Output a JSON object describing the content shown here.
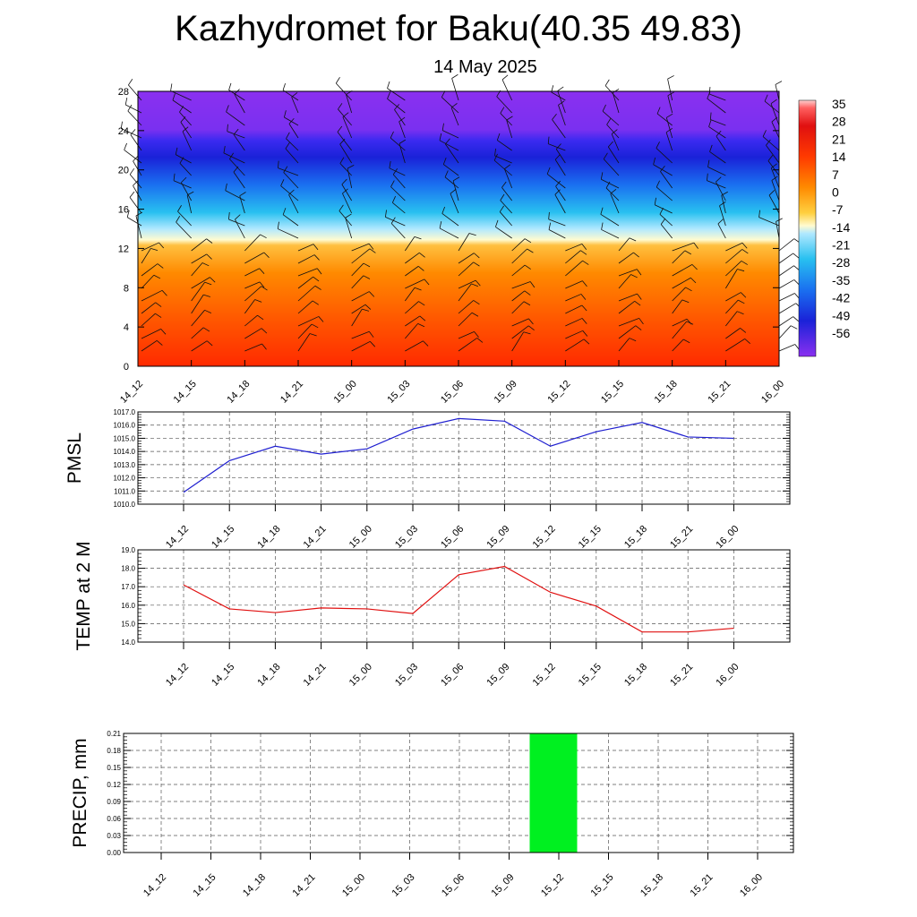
{
  "title": "Kazhydromet for Baku(40.35 49.83)",
  "subtitle": "14 May 2025",
  "colors": {
    "pmsl_line": "#1f1fd0",
    "temp_line": "#e01010",
    "precip_bar": "#00f020",
    "grid": "#555555"
  },
  "chart_data": [
    {
      "type": "heatmap",
      "x": [
        "14_12",
        "14_15",
        "14_18",
        "14_21",
        "15_00",
        "15_03",
        "15_06",
        "15_09",
        "15_12",
        "15_15",
        "15_18",
        "15_21",
        "16_00"
      ],
      "y_ticks": [
        "0",
        "4",
        "8",
        "12",
        "16",
        "20",
        "24",
        "28"
      ],
      "ylim": [
        0,
        28
      ],
      "zero_level": 12.5,
      "colorbar": {
        "labels": [
          "35",
          "28",
          "21",
          "14",
          "7",
          "0",
          "-7",
          "-14",
          "-21",
          "-28",
          "-35",
          "-42",
          "-49",
          "-56"
        ],
        "range": [
          -63,
          42
        ]
      },
      "wind_barbs": true
    },
    {
      "type": "line",
      "ylabel": "PMSL",
      "x": [
        "14_12",
        "14_15",
        "14_18",
        "14_21",
        "15_00",
        "15_03",
        "15_06",
        "15_09",
        "15_12",
        "15_15",
        "15_18",
        "15_21",
        "16_00"
      ],
      "values": [
        1010.9,
        1013.3,
        1014.4,
        1013.8,
        1014.2,
        1015.7,
        1016.5,
        1016.3,
        1014.4,
        1015.5,
        1016.2,
        1015.1,
        1015.0
      ],
      "y_ticks": [
        "1010.0",
        "1011.0",
        "1012.0",
        "1013.0",
        "1014.0",
        "1015.0",
        "1016.0",
        "1017.0"
      ],
      "ylim": [
        1010,
        1017
      ],
      "grid": true
    },
    {
      "type": "line",
      "ylabel": "TEMP at 2 M",
      "x": [
        "14_12",
        "14_15",
        "14_18",
        "14_21",
        "15_00",
        "15_03",
        "15_06",
        "15_09",
        "15_12",
        "15_15",
        "15_18",
        "15_21",
        "16_00"
      ],
      "values": [
        17.1,
        15.8,
        15.6,
        15.85,
        15.8,
        15.55,
        17.65,
        18.1,
        16.7,
        15.95,
        14.55,
        14.55,
        14.75
      ],
      "y_ticks": [
        "14.0",
        "15.0",
        "16.0",
        "17.0",
        "18.0",
        "19.0"
      ],
      "ylim": [
        14,
        19
      ],
      "grid": true
    },
    {
      "type": "bar",
      "ylabel": "PRECIP, mm",
      "x": [
        "14_12",
        "14_15",
        "14_18",
        "14_21",
        "15_00",
        "15_03",
        "15_06",
        "15_09",
        "15_12",
        "15_15",
        "15_18",
        "15_21",
        "16_00"
      ],
      "values": [
        0,
        0,
        0,
        0,
        0,
        0,
        0,
        0,
        0.21,
        0,
        0,
        0,
        0
      ],
      "y_ticks": [
        "0.00",
        "0.03",
        "0.06",
        "0.09",
        "0.12",
        "0.15",
        "0.18",
        "0.21"
      ],
      "ylim": [
        0,
        0.21
      ],
      "grid": true
    }
  ]
}
